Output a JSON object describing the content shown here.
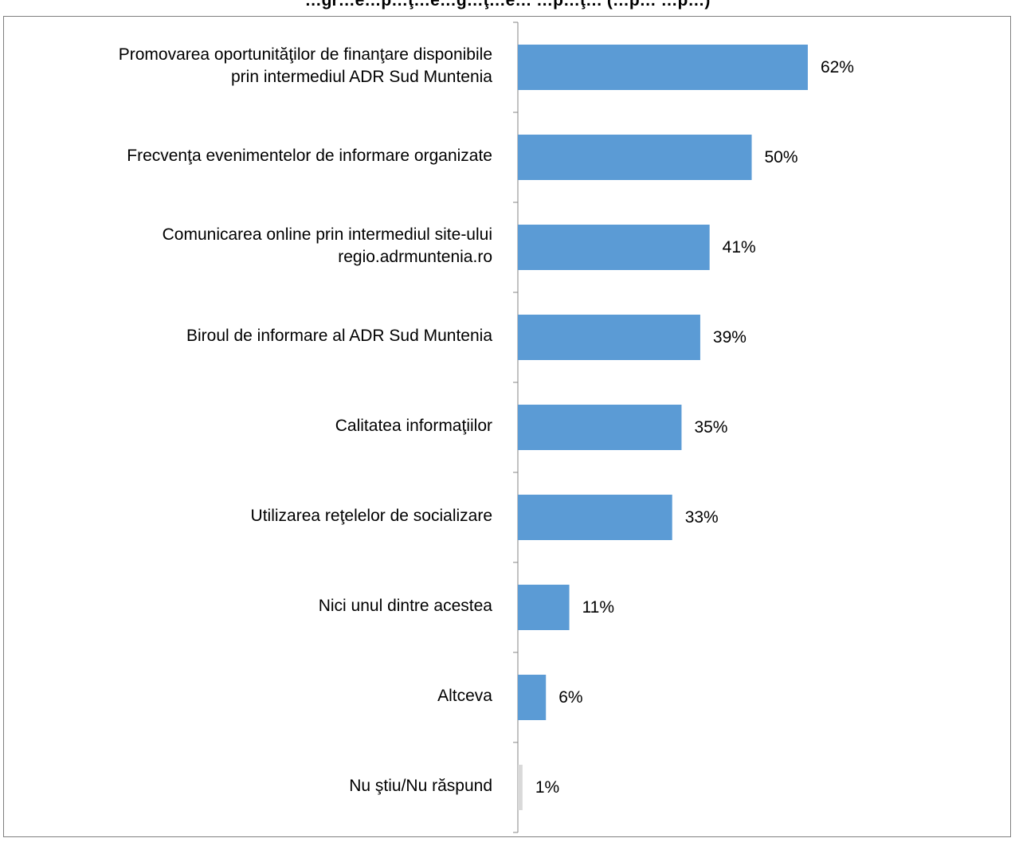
{
  "chart_data": {
    "type": "bar",
    "orientation": "horizontal",
    "title": "…gr…e…p…ţ…e…g…ţ…e… …p…ţ… (…p… …p…)",
    "categories": [
      "Promovarea oportunităţilor de finanţare disponibile prin intermediul ADR Sud Muntenia",
      "Frecvenţa evenimentelor de informare organizate",
      "Comunicarea online prin intermediul site-ului regio.adrmuntenia.ro",
      "Biroul de informare al ADR Sud Muntenia",
      "Calitatea informaţiilor",
      "Utilizarea  reţelelor de socializare",
      "Nici unul dintre acestea",
      "Altceva",
      "Nu ştiu/Nu răspund"
    ],
    "category_lines": [
      [
        "Promovarea oportunităţilor de finanţare disponibile",
        "prin intermediul ADR Sud Muntenia"
      ],
      [
        "Frecvenţa evenimentelor de informare organizate"
      ],
      [
        "Comunicarea online prin intermediul site-ului",
        "regio.adrmuntenia.ro"
      ],
      [
        "Biroul de informare al ADR Sud Muntenia"
      ],
      [
        "Calitatea informaţiilor"
      ],
      [
        "Utilizarea  reţelelor de socializare"
      ],
      [
        "Nici unul dintre acestea"
      ],
      [
        "Altceva"
      ],
      [
        "Nu ştiu/Nu răspund"
      ]
    ],
    "values": [
      62,
      50,
      41,
      39,
      35,
      33,
      11,
      6,
      1
    ],
    "value_labels": [
      "62%",
      "50%",
      "41%",
      "39%",
      "35%",
      "33%",
      "11%",
      "6%",
      "1%"
    ],
    "unit": "%",
    "xlim": [
      0,
      100
    ],
    "grid": false,
    "legend": "none",
    "bar_color": "#5b9bd5",
    "last_bar_color": "#d9d9d9",
    "axis_color": "#868686"
  }
}
